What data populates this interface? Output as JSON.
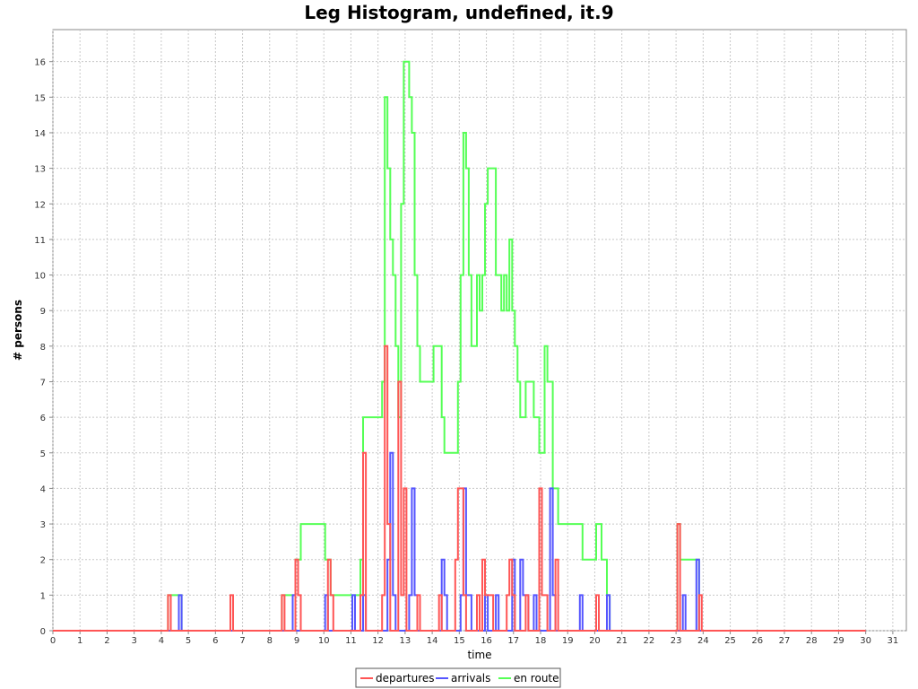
{
  "chart_data": {
    "type": "line",
    "title": "Leg Histogram, undefined, it.9",
    "xlabel": "time",
    "ylabel": "# persons",
    "xlim": [
      0,
      31.5
    ],
    "ylim": [
      0,
      16.9
    ],
    "x_ticks": [
      "0",
      "1",
      "2",
      "3",
      "4",
      "5",
      "6",
      "7",
      "8",
      "9",
      "10",
      "11",
      "12",
      "13",
      "14",
      "15",
      "16",
      "17",
      "18",
      "19",
      "20",
      "21",
      "22",
      "23",
      "24",
      "25",
      "26",
      "27",
      "28",
      "29",
      "30",
      "31"
    ],
    "y_ticks": [
      "0",
      "1",
      "2",
      "3",
      "4",
      "5",
      "6",
      "7",
      "8",
      "9",
      "10",
      "11",
      "12",
      "13",
      "14",
      "15",
      "16"
    ],
    "grid": true,
    "legend_position": "bottom",
    "series": [
      {
        "name": "departures",
        "color": "#ff5555",
        "step_points": [
          [
            0,
            0
          ],
          [
            4.25,
            1
          ],
          [
            4.35,
            0
          ],
          [
            6.55,
            1
          ],
          [
            6.65,
            0
          ],
          [
            8.45,
            1
          ],
          [
            8.55,
            0
          ],
          [
            8.95,
            2
          ],
          [
            9.05,
            1
          ],
          [
            9.15,
            0
          ],
          [
            10.15,
            2
          ],
          [
            10.25,
            1
          ],
          [
            10.35,
            0
          ],
          [
            11.35,
            1
          ],
          [
            11.45,
            5
          ],
          [
            11.55,
            0
          ],
          [
            12.15,
            1
          ],
          [
            12.25,
            8
          ],
          [
            12.35,
            3
          ],
          [
            12.45,
            0
          ],
          [
            12.75,
            7
          ],
          [
            12.85,
            1
          ],
          [
            12.95,
            4
          ],
          [
            13.05,
            0
          ],
          [
            13.45,
            1
          ],
          [
            13.55,
            0
          ],
          [
            14.25,
            1
          ],
          [
            14.35,
            0
          ],
          [
            14.85,
            2
          ],
          [
            14.95,
            4
          ],
          [
            15.15,
            1
          ],
          [
            15.25,
            0
          ],
          [
            15.65,
            1
          ],
          [
            15.75,
            0
          ],
          [
            15.85,
            2
          ],
          [
            15.95,
            1
          ],
          [
            16.25,
            0
          ],
          [
            16.75,
            1
          ],
          [
            16.85,
            2
          ],
          [
            16.95,
            1
          ],
          [
            17.05,
            0
          ],
          [
            17.45,
            1
          ],
          [
            17.55,
            0
          ],
          [
            17.95,
            4
          ],
          [
            18.05,
            1
          ],
          [
            18.25,
            0
          ],
          [
            18.55,
            2
          ],
          [
            18.65,
            0
          ],
          [
            20.05,
            1
          ],
          [
            20.15,
            0
          ],
          [
            23.05,
            3
          ],
          [
            23.15,
            0
          ],
          [
            23.85,
            1
          ],
          [
            23.95,
            0
          ],
          [
            30.0,
            0
          ]
        ]
      },
      {
        "name": "arrivals",
        "color": "#5555ff",
        "step_points": [
          [
            0,
            0
          ],
          [
            4.65,
            1
          ],
          [
            4.75,
            0
          ],
          [
            8.85,
            1
          ],
          [
            8.95,
            0
          ],
          [
            10.05,
            1
          ],
          [
            10.15,
            0
          ],
          [
            11.05,
            1
          ],
          [
            11.15,
            0
          ],
          [
            11.45,
            1
          ],
          [
            11.55,
            0
          ],
          [
            12.35,
            2
          ],
          [
            12.45,
            5
          ],
          [
            12.55,
            1
          ],
          [
            12.65,
            0
          ],
          [
            13.15,
            1
          ],
          [
            13.25,
            4
          ],
          [
            13.35,
            1
          ],
          [
            13.45,
            0
          ],
          [
            14.35,
            2
          ],
          [
            14.45,
            1
          ],
          [
            14.55,
            0
          ],
          [
            15.05,
            1
          ],
          [
            15.15,
            4
          ],
          [
            15.25,
            1
          ],
          [
            15.45,
            0
          ],
          [
            15.95,
            1
          ],
          [
            16.05,
            0
          ],
          [
            16.35,
            1
          ],
          [
            16.45,
            0
          ],
          [
            16.95,
            2
          ],
          [
            17.05,
            0
          ],
          [
            17.25,
            2
          ],
          [
            17.35,
            1
          ],
          [
            17.55,
            0
          ],
          [
            17.75,
            1
          ],
          [
            17.85,
            0
          ],
          [
            18.35,
            4
          ],
          [
            18.45,
            1
          ],
          [
            18.55,
            0
          ],
          [
            19.45,
            1
          ],
          [
            19.55,
            0
          ],
          [
            20.45,
            1
          ],
          [
            20.55,
            0
          ],
          [
            23.25,
            1
          ],
          [
            23.35,
            0
          ],
          [
            23.75,
            2
          ],
          [
            23.85,
            0
          ],
          [
            30.0,
            0
          ]
        ]
      },
      {
        "name": "en route",
        "color": "#55ff55",
        "step_points": [
          [
            0,
            0
          ],
          [
            4.25,
            1
          ],
          [
            4.75,
            0
          ],
          [
            8.45,
            1
          ],
          [
            8.95,
            2
          ],
          [
            9.15,
            3
          ],
          [
            10.05,
            2
          ],
          [
            10.25,
            1
          ],
          [
            11.35,
            2
          ],
          [
            11.45,
            6
          ],
          [
            12.15,
            7
          ],
          [
            12.25,
            15
          ],
          [
            12.35,
            13
          ],
          [
            12.45,
            11
          ],
          [
            12.55,
            10
          ],
          [
            12.65,
            8
          ],
          [
            12.75,
            6
          ],
          [
            12.85,
            12
          ],
          [
            12.95,
            16
          ],
          [
            13.15,
            15
          ],
          [
            13.25,
            14
          ],
          [
            13.35,
            10
          ],
          [
            13.45,
            8
          ],
          [
            13.55,
            7
          ],
          [
            14.05,
            8
          ],
          [
            14.35,
            6
          ],
          [
            14.45,
            5
          ],
          [
            14.95,
            7
          ],
          [
            15.05,
            10
          ],
          [
            15.15,
            14
          ],
          [
            15.25,
            13
          ],
          [
            15.35,
            10
          ],
          [
            15.45,
            8
          ],
          [
            15.65,
            10
          ],
          [
            15.75,
            9
          ],
          [
            15.85,
            10
          ],
          [
            15.95,
            12
          ],
          [
            16.05,
            13
          ],
          [
            16.35,
            10
          ],
          [
            16.55,
            9
          ],
          [
            16.65,
            10
          ],
          [
            16.75,
            9
          ],
          [
            16.85,
            11
          ],
          [
            16.95,
            9
          ],
          [
            17.05,
            8
          ],
          [
            17.15,
            7
          ],
          [
            17.25,
            6
          ],
          [
            17.45,
            7
          ],
          [
            17.75,
            6
          ],
          [
            17.95,
            5
          ],
          [
            18.15,
            8
          ],
          [
            18.25,
            7
          ],
          [
            18.45,
            4
          ],
          [
            18.65,
            3
          ],
          [
            19.55,
            2
          ],
          [
            20.05,
            3
          ],
          [
            20.25,
            2
          ],
          [
            20.45,
            1
          ],
          [
            20.55,
            0
          ],
          [
            23.05,
            3
          ],
          [
            23.15,
            2
          ],
          [
            23.75,
            2
          ],
          [
            23.85,
            0
          ],
          [
            30.0,
            0
          ]
        ]
      }
    ]
  }
}
